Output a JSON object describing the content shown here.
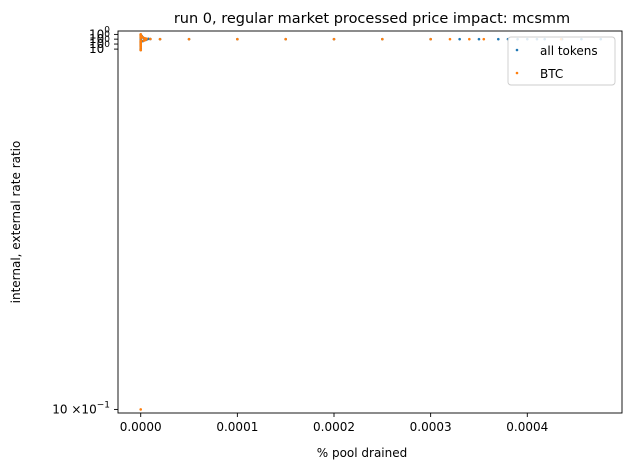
{
  "chart_data": {
    "type": "scatter",
    "title": "run 0, regular market processed price impact: mcsmm",
    "xlabel": "% pool drained",
    "ylabel": "internal, external rate ratio",
    "xlim": [
      -2.35e-05,
      0.000498
    ],
    "x_ticks": [
      {
        "value": 0.0,
        "label": "0.0000"
      },
      {
        "value": 0.0001,
        "label": "0.0001"
      },
      {
        "value": 0.0002,
        "label": "0.0002"
      },
      {
        "value": 0.0003,
        "label": "0.0003"
      },
      {
        "value": 0.0004,
        "label": "0.0004"
      }
    ],
    "y_scale": "log",
    "ylim": [
      0.0978,
      1.052
    ],
    "y_ticks": [
      {
        "value": 1.03,
        "label": "10^0"
      },
      {
        "value": 1.0,
        "label": "10^0"
      },
      {
        "value": 0.97,
        "label": "10^0"
      },
      {
        "value": 0.94,
        "label": "10^0"
      },
      {
        "value": 0.1,
        "label": "10 × 10^-1"
      }
    ],
    "legend": {
      "position": "top-right"
    },
    "series": [
      {
        "name": "all tokens",
        "color": "#1f77b4",
        "points": [
          [
            0.0,
            1.029
          ],
          [
            0.0,
            1.026
          ],
          [
            0.0,
            1.02
          ],
          [
            0.0,
            1.012
          ],
          [
            0.0,
            1.005
          ],
          [
            0.0,
            0.995
          ],
          [
            0.0,
            0.988
          ],
          [
            0.0,
            0.982
          ],
          [
            0.0,
            0.976
          ],
          [
            0.0,
            0.97
          ],
          [
            0.0,
            0.964
          ],
          [
            0.0,
            0.958
          ],
          [
            0.0,
            0.953
          ],
          [
            0.0,
            0.945
          ],
          [
            0.0,
            0.935
          ],
          [
            1e-06,
            1.02
          ],
          [
            2e-06,
            1.012
          ],
          [
            3e-06,
            1.007
          ],
          [
            5e-06,
            1.003
          ],
          [
            8e-06,
            1.002
          ],
          [
            1e-05,
            1.001
          ],
          [
            2e-05,
            1.0
          ],
          [
            2e-06,
            0.988
          ],
          [
            4e-06,
            0.994
          ],
          [
            6e-06,
            0.997
          ],
          [
            5e-05,
            1.0
          ],
          [
            0.0001,
            1.0
          ],
          [
            0.00015,
            1.0
          ],
          [
            0.0002,
            1.0
          ],
          [
            0.00025,
            1.0
          ],
          [
            0.0003,
            1.0
          ],
          [
            0.00033,
            1.0
          ],
          [
            0.00035,
            1.0
          ],
          [
            0.00037,
            1.0
          ],
          [
            0.00038,
            1.0
          ],
          [
            0.00039,
            1.0
          ],
          [
            0.0004,
            1.0
          ],
          [
            0.00041,
            1.0
          ],
          [
            0.000418,
            1.0
          ],
          [
            0.000436,
            1.0
          ],
          [
            0.000456,
            1.0
          ],
          [
            0.000476,
            1.0
          ]
        ]
      },
      {
        "name": "BTC",
        "color": "#ff7f0e",
        "points": [
          [
            0.0,
            1.031
          ],
          [
            0.0,
            1.028
          ],
          [
            0.0,
            1.022
          ],
          [
            0.0,
            1.015
          ],
          [
            0.0,
            1.008
          ],
          [
            0.0,
            0.992
          ],
          [
            0.0,
            0.985
          ],
          [
            0.0,
            0.978
          ],
          [
            0.0,
            0.972
          ],
          [
            0.0,
            0.966
          ],
          [
            0.0,
            0.96
          ],
          [
            0.0,
            0.95
          ],
          [
            0.0,
            0.938
          ],
          [
            0.0,
            0.937
          ],
          [
            0.0,
            0.934
          ],
          [
            0.0,
            0.1
          ],
          [
            1e-06,
            1.018
          ],
          [
            2e-06,
            1.011
          ],
          [
            4e-06,
            1.006
          ],
          [
            6e-06,
            1.003
          ],
          [
            1e-05,
            1.001
          ],
          [
            2e-05,
            1.0
          ],
          [
            3e-06,
            0.99
          ],
          [
            5e-06,
            0.995
          ],
          [
            5e-05,
            1.0
          ],
          [
            0.0001,
            1.0
          ],
          [
            0.00015,
            1.0
          ],
          [
            0.0002,
            1.0
          ],
          [
            0.00025,
            1.0
          ],
          [
            0.0003,
            1.0
          ],
          [
            0.00032,
            1.0
          ],
          [
            0.00034,
            1.0
          ],
          [
            0.000355,
            1.0
          ],
          [
            0.000435,
            1.0
          ]
        ]
      }
    ]
  }
}
